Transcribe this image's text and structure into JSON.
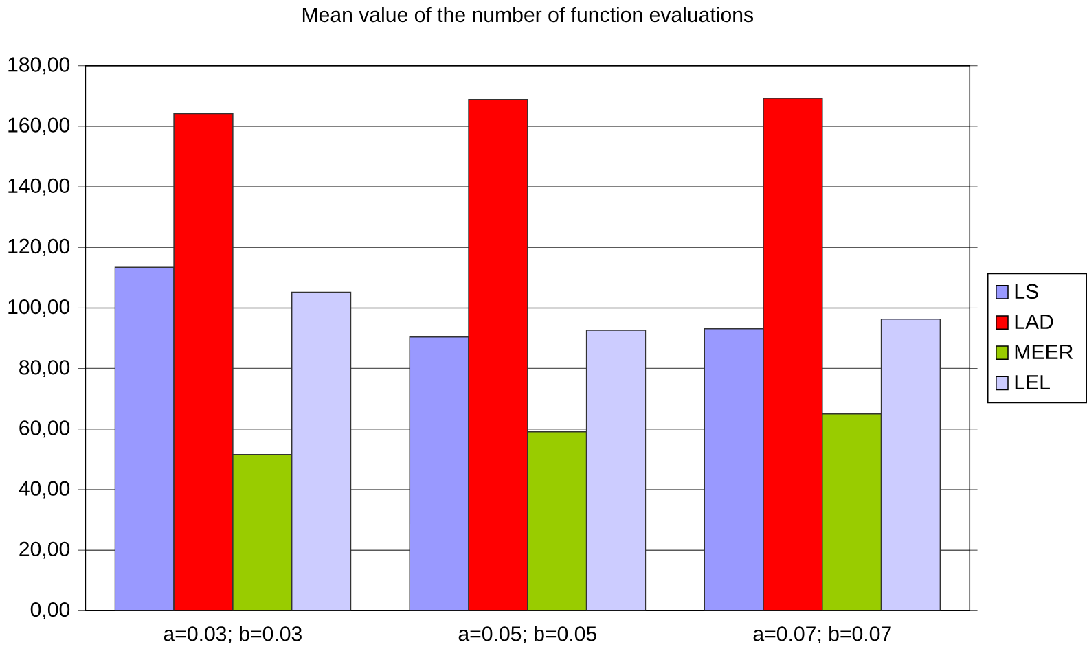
{
  "chart_data": {
    "type": "bar",
    "title": "Mean value of the number of function evaluations",
    "categories": [
      "a=0.03; b=0.03",
      "a=0.05; b=0.05",
      "a=0.07; b=0.07"
    ],
    "series": [
      {
        "name": "LS",
        "color": "#9999ff",
        "values": [
          113.4,
          90.4,
          93.1
        ]
      },
      {
        "name": "LAD",
        "color": "#ff0000",
        "values": [
          164.2,
          168.9,
          169.3
        ]
      },
      {
        "name": "MEER",
        "color": "#99cc00",
        "values": [
          51.6,
          59.1,
          65.0
        ]
      },
      {
        "name": "LEL",
        "color": "#ccccff",
        "values": [
          105.2,
          92.6,
          96.3
        ]
      }
    ],
    "ylim": [
      0,
      180
    ],
    "yticks": [
      {
        "value": 0,
        "label": "0,00"
      },
      {
        "value": 20,
        "label": "20,00"
      },
      {
        "value": 40,
        "label": "40,00"
      },
      {
        "value": 60,
        "label": "60,00"
      },
      {
        "value": 80,
        "label": "80,00"
      },
      {
        "value": 100,
        "label": "100,00"
      },
      {
        "value": 120,
        "label": "120,00"
      },
      {
        "value": 140,
        "label": "140,00"
      },
      {
        "value": 160,
        "label": "160,00"
      },
      {
        "value": 180,
        "label": "180,00"
      }
    ],
    "grid": "y",
    "legend": "right"
  }
}
